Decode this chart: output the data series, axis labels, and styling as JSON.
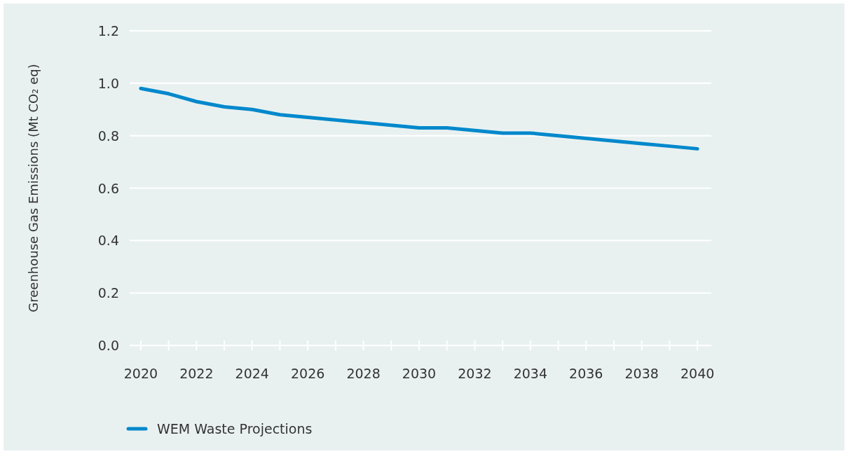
{
  "chart_data": {
    "type": "line",
    "ylabel": "Greenhouse Gas Emissions (Mt CO₂ eq)",
    "x": [
      2020,
      2021,
      2022,
      2023,
      2024,
      2025,
      2026,
      2027,
      2028,
      2029,
      2030,
      2031,
      2032,
      2033,
      2034,
      2035,
      2036,
      2037,
      2038,
      2039,
      2040
    ],
    "series": [
      {
        "name": "WEM Waste Projections",
        "color": "#0088cc",
        "values": [
          0.98,
          0.96,
          0.93,
          0.91,
          0.9,
          0.88,
          0.87,
          0.86,
          0.85,
          0.84,
          0.83,
          0.83,
          0.82,
          0.81,
          0.81,
          0.8,
          0.79,
          0.78,
          0.77,
          0.76,
          0.75
        ]
      }
    ],
    "xlim": [
      2019.6,
      2040.5
    ],
    "ylim": [
      0,
      1.2
    ],
    "xticks": [
      2020,
      {
        "value": 2021,
        "label": null
      },
      2022,
      {
        "value": 2023,
        "label": null
      },
      2024,
      {
        "value": 2025,
        "label": null
      },
      2026,
      {
        "value": 2027,
        "label": null
      },
      2028,
      {
        "value": 2029,
        "label": null
      },
      2030,
      {
        "value": 2031,
        "label": null
      },
      2032,
      {
        "value": 2033,
        "label": null
      },
      2034,
      {
        "value": 2035,
        "label": null
      },
      2036,
      {
        "value": 2037,
        "label": null
      },
      2038,
      {
        "value": 2039,
        "label": null
      },
      2040
    ],
    "yticks": [
      {
        "value": 0,
        "label": "0.0"
      },
      0.2,
      0.4,
      0.6,
      0.8,
      {
        "value": 1,
        "label": "1.0"
      },
      1.2
    ],
    "grid": "y",
    "legend": "bottom left",
    "marker": "none",
    "line_style": "solid"
  }
}
